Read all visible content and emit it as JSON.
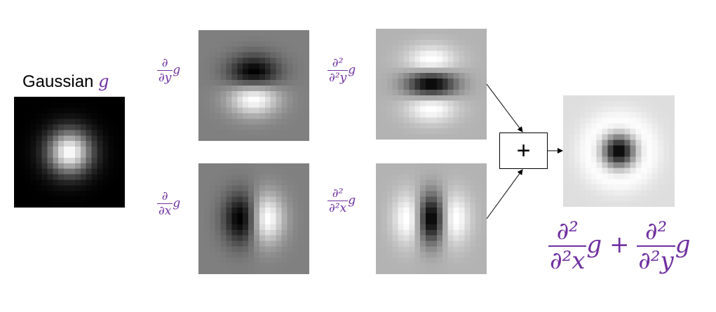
{
  "title": {
    "text": "Gaussian",
    "symbol": "g"
  },
  "labels": {
    "dy": {
      "num": "∂",
      "den": "∂y",
      "fn": "g"
    },
    "dx": {
      "num": "∂",
      "den": "∂x",
      "fn": "g"
    },
    "d2y": {
      "num": "∂²",
      "den": "∂²y",
      "fn": "g"
    },
    "d2x": {
      "num": "∂²",
      "den": "∂²x",
      "fn": "g"
    }
  },
  "operator": "+",
  "result_formula": {
    "t1_num": "∂²",
    "t1_den": "∂²x",
    "t1_fn": "g",
    "op": "+",
    "t2_num": "∂²",
    "t2_den": "∂²y",
    "t2_fn": "g"
  },
  "colors": {
    "math": "#7030a0"
  }
}
